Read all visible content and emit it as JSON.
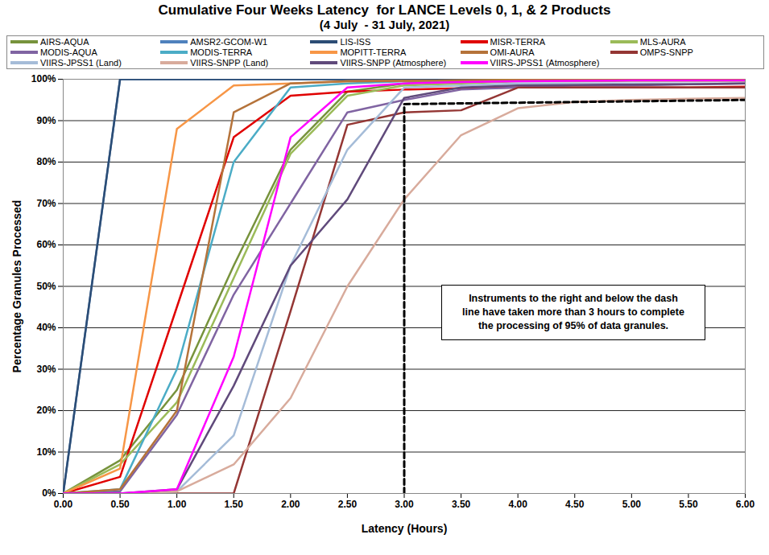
{
  "chart_data": {
    "type": "line",
    "title": "Cumulative Four Weeks Latency  for LANCE Levels 0, 1, & 2 Products",
    "subtitle": "(4 July  - 31 July, 2021)",
    "x_label": "Latency (Hours)",
    "y_label": "Percentage Granules Processed",
    "x": [
      0,
      0.5,
      1,
      1.5,
      2,
      2.5,
      3,
      3.5,
      4,
      4.5,
      5,
      5.5,
      6
    ],
    "series": [
      {
        "name": "AIRS-AQUA",
        "color": "#77933c",
        "values": [
          0,
          8,
          25,
          55,
          83,
          97,
          99,
          99.5,
          99.6,
          99.7,
          99.8,
          99.8,
          99.8
        ]
      },
      {
        "name": "AMSR2-GCOM-W1",
        "color": "#4f81bd",
        "values": [
          0,
          100,
          100,
          100,
          100,
          100,
          100,
          100,
          100,
          100,
          100,
          100,
          100
        ]
      },
      {
        "name": "LIS-ISS",
        "color": "#2c4d75",
        "values": [
          0,
          100,
          100,
          100,
          100,
          100,
          100,
          100,
          100,
          100,
          100,
          100,
          100
        ]
      },
      {
        "name": "MISR-TERRA",
        "color": "#e00000",
        "values": [
          0,
          4,
          45,
          86,
          96,
          97,
          97.5,
          97.8,
          98,
          98,
          98,
          98,
          98.2
        ]
      },
      {
        "name": "MLS-AURA",
        "color": "#9bbb59",
        "values": [
          0,
          7,
          22,
          52,
          82,
          96,
          98.5,
          99,
          99.5,
          99.5,
          99.6,
          99.6,
          99.6
        ]
      },
      {
        "name": "MODIS-AQUA",
        "color": "#8064a2",
        "values": [
          0,
          0.5,
          19,
          48,
          70,
          92,
          95,
          97.5,
          98,
          98.5,
          98.5,
          98.8,
          99
        ]
      },
      {
        "name": "MODIS-TERRA",
        "color": "#4bacc6",
        "values": [
          0,
          1,
          30,
          80,
          98,
          99,
          99.5,
          99.6,
          99.7,
          99.8,
          99.8,
          99.8,
          99.8
        ]
      },
      {
        "name": "MOPITT-TERRA",
        "color": "#f79646",
        "values": [
          0,
          6,
          88,
          98.5,
          99,
          99.5,
          99.6,
          99.7,
          99.8,
          99.8,
          99.8,
          99.8,
          99.8
        ]
      },
      {
        "name": "OMI-AURA",
        "color": "#b5733a",
        "values": [
          0,
          1,
          20,
          92,
          99,
          99.5,
          99.6,
          99.7,
          99.8,
          99.8,
          99.8,
          99.8,
          99.8
        ]
      },
      {
        "name": "OMPS-SNPP",
        "color": "#943634",
        "values": [
          0,
          0,
          0,
          0,
          44,
          89,
          92,
          92.5,
          98,
          98,
          98,
          98,
          98
        ]
      },
      {
        "name": "VIIRS-JPSS1 (Land)",
        "color": "#a5bcd8",
        "values": [
          0,
          0,
          0.5,
          14,
          55,
          83,
          98,
          98.5,
          99,
          99,
          99,
          99,
          99
        ]
      },
      {
        "name": "VIIRS-SNPP (Land)",
        "color": "#d8ab9c",
        "values": [
          0,
          0,
          0.5,
          7,
          23,
          50,
          71,
          86.5,
          93,
          94.5,
          95,
          95.3,
          95.5
        ]
      },
      {
        "name": "VIIRS-SNPP (Atmosphere)",
        "color": "#604a7b",
        "values": [
          0,
          0,
          1,
          26,
          55,
          71,
          95.5,
          98,
          98.5,
          98.6,
          98.7,
          98.8,
          99
        ]
      },
      {
        "name": "VIIRS-JPSS1 (Atmosphere)",
        "color": "#ff00ff",
        "values": [
          0,
          0,
          1,
          33,
          86,
          98,
          99,
          99.3,
          99.5,
          99.6,
          99.7,
          99.7,
          99.7
        ]
      }
    ],
    "threshold_line": {
      "x": [
        3,
        3,
        6
      ],
      "y": [
        0,
        94,
        95
      ],
      "line_style": "dashed",
      "color": "#000000"
    },
    "annotation": "Instruments to the right and below the dash\nline have taken more than 3 hours to complete\nthe processing of 95% of data granules.",
    "xlim": [
      0,
      6
    ],
    "ylim": [
      0,
      100
    ],
    "xticks": [
      {
        "value": 0,
        "label": "0.00"
      },
      {
        "value": 0.5,
        "label": "0.50"
      },
      {
        "value": 1,
        "label": "1.00"
      },
      {
        "value": 1.5,
        "label": "1.50"
      },
      {
        "value": 2,
        "label": "2.00"
      },
      {
        "value": 2.5,
        "label": "2.50"
      },
      {
        "value": 3,
        "label": "3.00"
      },
      {
        "value": 3.5,
        "label": "3.50"
      },
      {
        "value": 4,
        "label": "4.00"
      },
      {
        "value": 4.5,
        "label": "4.50"
      },
      {
        "value": 5,
        "label": "5.00"
      },
      {
        "value": 5.5,
        "label": "5.50"
      },
      {
        "value": 6,
        "label": "6.00"
      }
    ],
    "yticks": [
      {
        "value": 0,
        "label": "0%"
      },
      {
        "value": 10,
        "label": "10%"
      },
      {
        "value": 20,
        "label": "20%"
      },
      {
        "value": 30,
        "label": "30%"
      },
      {
        "value": 40,
        "label": "40%"
      },
      {
        "value": 50,
        "label": "50%"
      },
      {
        "value": 60,
        "label": "60%"
      },
      {
        "value": 70,
        "label": "70%"
      },
      {
        "value": 80,
        "label": "80%"
      },
      {
        "value": 90,
        "label": "90%"
      },
      {
        "value": 100,
        "label": "100%"
      }
    ],
    "grid": true,
    "legend": "top"
  }
}
